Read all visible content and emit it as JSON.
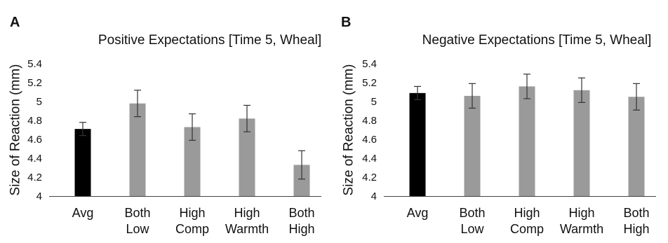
{
  "chart_data": [
    {
      "type": "bar",
      "panel": "A",
      "title": "Positive Expectations [Time 5, Wheal]",
      "xlabel": "",
      "ylabel": "Size of Reaction (mm)",
      "ylim": [
        4,
        5.4
      ],
      "yticks": [
        "5.4",
        "5.2",
        "5",
        "4.8",
        "4.6",
        "4.4",
        "4.2",
        "4"
      ],
      "categories": [
        [
          "Avg"
        ],
        [
          "Both",
          "Low"
        ],
        [
          "High",
          "Comp"
        ],
        [
          "High",
          "Warmth"
        ],
        [
          "Both",
          "High"
        ]
      ],
      "values": [
        4.71,
        4.98,
        4.73,
        4.82,
        4.33
      ],
      "errors": [
        0.07,
        0.14,
        0.14,
        0.14,
        0.15
      ],
      "colors": [
        "#000000",
        "#9a9a9a",
        "#9a9a9a",
        "#9a9a9a",
        "#9a9a9a"
      ],
      "grid": false
    },
    {
      "type": "bar",
      "panel": "B",
      "title": "Negative Expectations [Time 5, Wheal]",
      "xlabel": "",
      "ylabel": "Size of Reaction (mm)",
      "ylim": [
        4,
        5.4
      ],
      "yticks": [
        "5.4",
        "5.2",
        "5",
        "4.8",
        "4.6",
        "4.4",
        "4.2",
        "4"
      ],
      "categories": [
        [
          "Avg"
        ],
        [
          "Both",
          "Low"
        ],
        [
          "High",
          "Comp"
        ],
        [
          "High",
          "Warmth"
        ],
        [
          "Both",
          "High"
        ]
      ],
      "values": [
        5.09,
        5.06,
        5.16,
        5.12,
        5.05
      ],
      "errors": [
        0.07,
        0.13,
        0.13,
        0.13,
        0.14
      ],
      "colors": [
        "#000000",
        "#9a9a9a",
        "#9a9a9a",
        "#9a9a9a",
        "#9a9a9a"
      ],
      "grid": false
    }
  ]
}
